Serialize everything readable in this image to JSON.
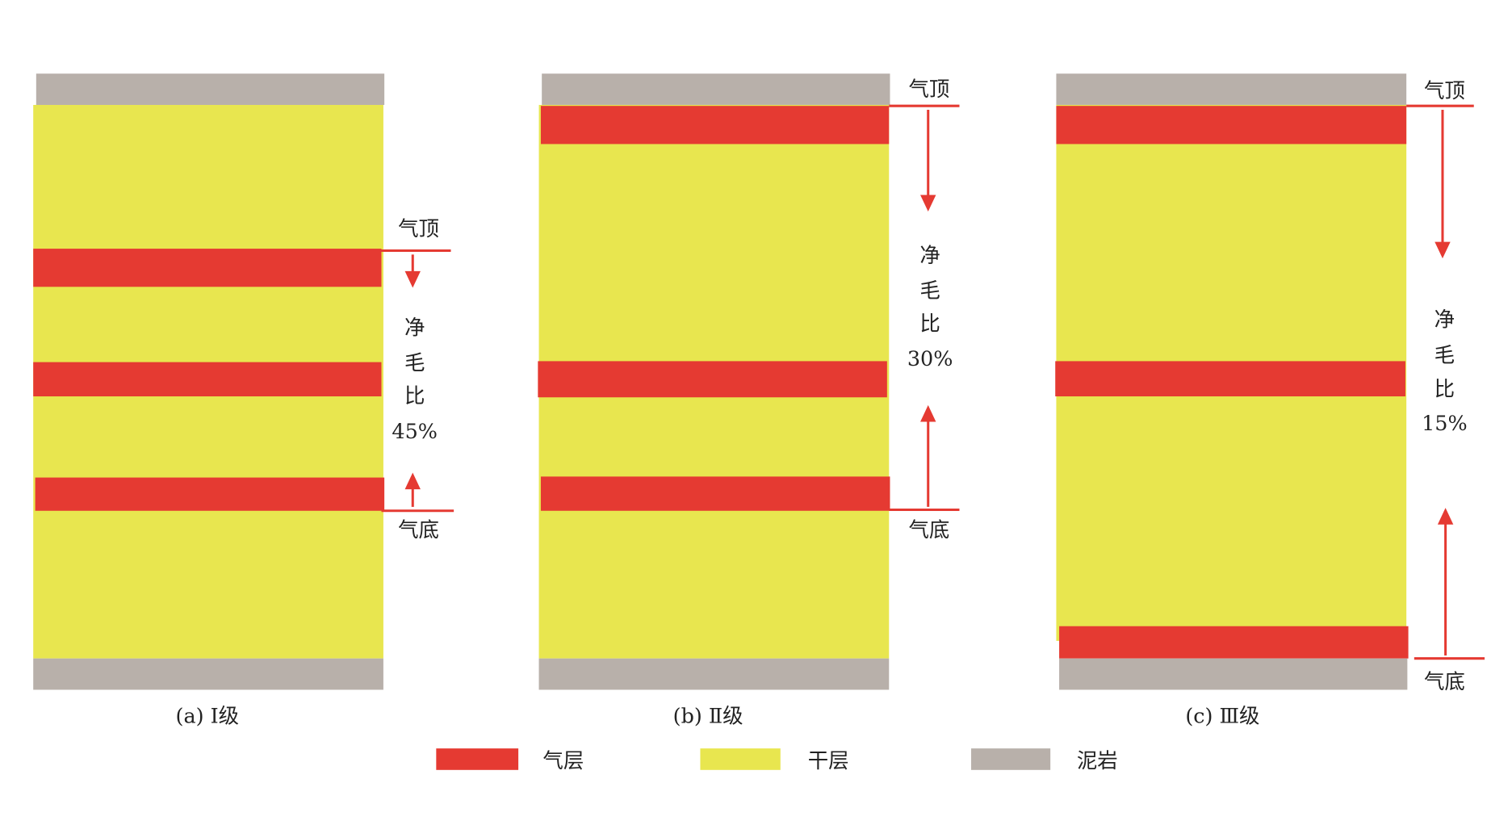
{
  "panels": [
    {
      "caption": "(a) Ⅰ级",
      "top_label": "气顶",
      "bottom_label": "气底",
      "ratio_label": [
        "净",
        "毛",
        "比"
      ],
      "ratio": "45%"
    },
    {
      "caption": "(b) Ⅱ级",
      "top_label": "气顶",
      "bottom_label": "气底",
      "ratio_label": [
        "净",
        "毛",
        "比"
      ],
      "ratio": "30%"
    },
    {
      "caption": "(c) Ⅲ级",
      "top_label": "气顶",
      "bottom_label": "气底",
      "ratio_label": [
        "净",
        "毛",
        "比"
      ],
      "ratio": "15%"
    }
  ],
  "legend": [
    {
      "label": "气层"
    },
    {
      "label": "干层"
    },
    {
      "label": "泥岩"
    }
  ]
}
